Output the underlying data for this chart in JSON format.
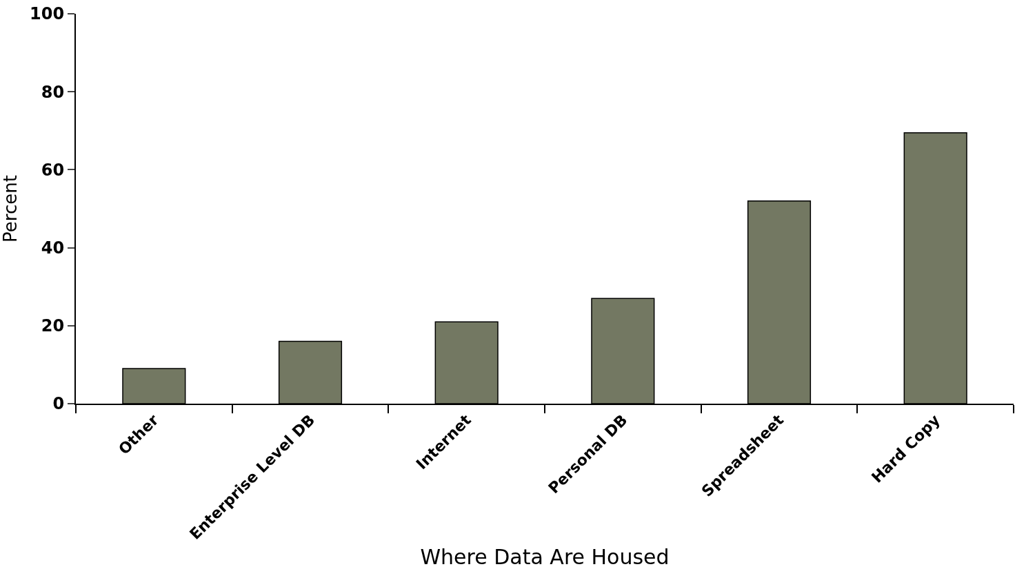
{
  "chart_data": {
    "type": "bar",
    "xlabel": "Where Data Are Housed",
    "ylabel": "Percent",
    "categories": [
      "Other",
      "Enterprise Level DB",
      "Internet",
      "Personal DB",
      "Spreadsheet",
      "Hard Copy"
    ],
    "values": [
      9,
      16,
      21,
      27,
      52,
      69.5
    ],
    "color": "#737862",
    "ylim": [
      0,
      100
    ],
    "yticks": [
      0,
      20,
      40,
      60,
      80,
      100
    ]
  }
}
